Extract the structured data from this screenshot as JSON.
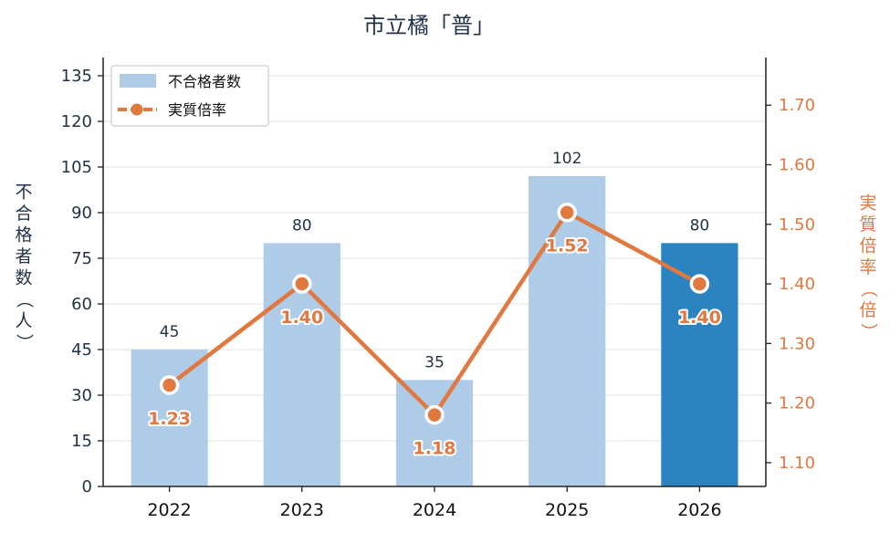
{
  "chart_data": {
    "type": "bar",
    "title": "市立橘「普」",
    "categories": [
      "2022",
      "2023",
      "2024",
      "2025",
      "2026"
    ],
    "series": [
      {
        "name": "不合格者数",
        "type": "bar",
        "axis": "left",
        "values": [
          45,
          80,
          35,
          102,
          80
        ],
        "color": "#aecbe8",
        "highlight_color": "#2b83c0",
        "highlight_index": 4
      },
      {
        "name": "実質倍率",
        "type": "line",
        "axis": "right",
        "values": [
          1.23,
          1.4,
          1.18,
          1.52,
          1.4
        ],
        "labels": [
          "1.23",
          "1.40",
          "1.18",
          "1.52",
          "1.40"
        ],
        "color": "#e07840"
      }
    ],
    "ylabel_left": "不合格者数（人）",
    "ylabel_right": "実質倍率（倍）",
    "ylim_left": [
      0,
      141
    ],
    "yticks_left": [
      0,
      15,
      30,
      45,
      60,
      75,
      90,
      105,
      120,
      135
    ],
    "ylim_right": [
      1.06,
      1.78
    ],
    "yticks_right": [
      "1.10",
      "1.20",
      "1.30",
      "1.40",
      "1.50",
      "1.60",
      "1.70"
    ],
    "grid": true,
    "legend_position": "top-left"
  }
}
